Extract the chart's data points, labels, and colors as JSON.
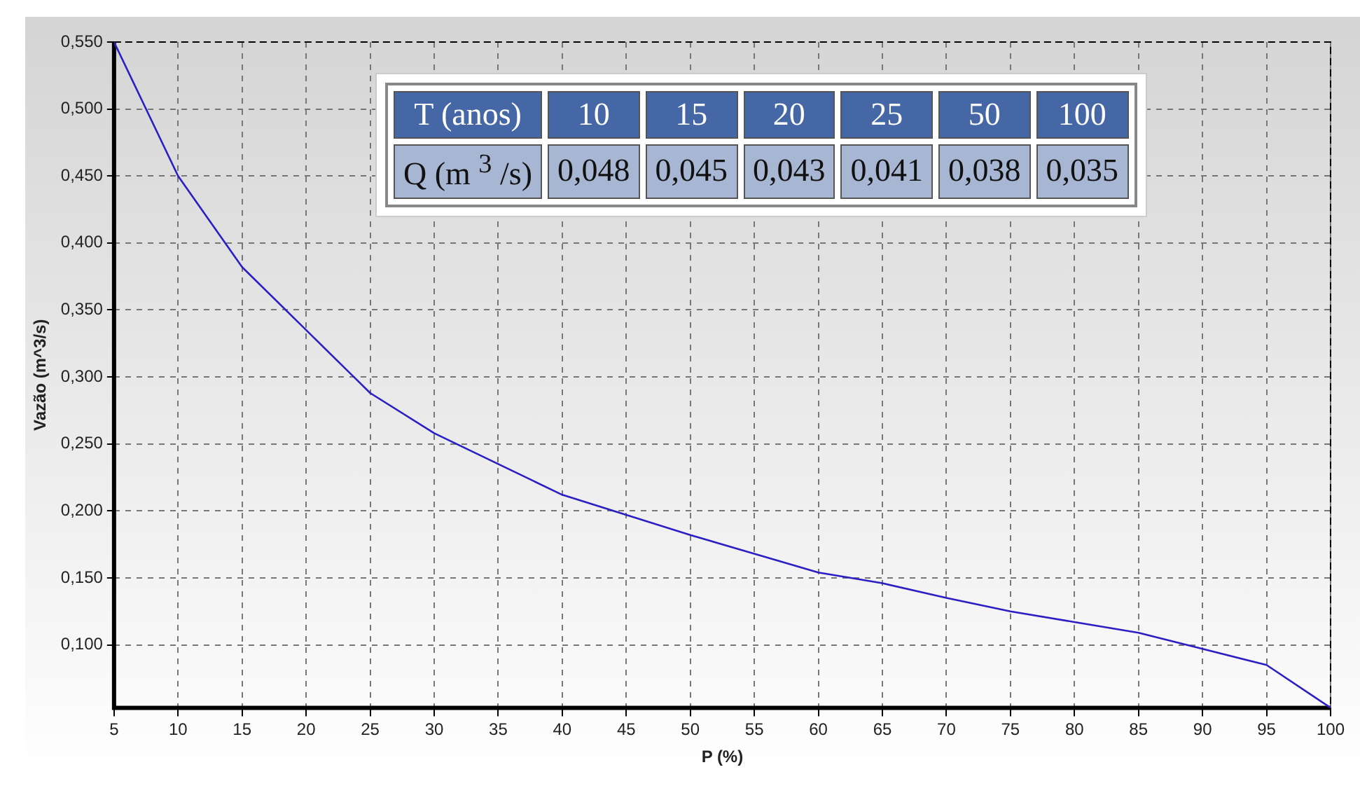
{
  "chart_data": {
    "type": "line",
    "xlabel": "P (%)",
    "ylabel": "Vazão (m^3/s)",
    "x": [
      5,
      10,
      15,
      20,
      25,
      30,
      35,
      40,
      45,
      50,
      55,
      60,
      65,
      70,
      75,
      80,
      85,
      90,
      95,
      100
    ],
    "series": [
      {
        "color": "#2b1fc4",
        "values": [
          0.55,
          0.45,
          0.382,
          0.335,
          0.288,
          0.258,
          0.235,
          0.212,
          0.197,
          0.182,
          0.168,
          0.154,
          0.146,
          0.135,
          0.125,
          0.117,
          0.109,
          0.097,
          0.085,
          0.053
        ]
      }
    ],
    "xlim": [
      5,
      100
    ],
    "xticks": [
      5,
      10,
      15,
      20,
      25,
      30,
      35,
      40,
      45,
      50,
      55,
      60,
      65,
      70,
      75,
      80,
      85,
      90,
      95,
      100
    ],
    "ylim": [
      0.053,
      0.55
    ],
    "yticks": [
      {
        "value": 0.1,
        "label": "0,100"
      },
      {
        "value": 0.15,
        "label": "0,150"
      },
      {
        "value": 0.2,
        "label": "0,200"
      },
      {
        "value": 0.25,
        "label": "0,250"
      },
      {
        "value": 0.3,
        "label": "0,300"
      },
      {
        "value": 0.35,
        "label": "0,350"
      },
      {
        "value": 0.4,
        "label": "0,400"
      },
      {
        "value": 0.45,
        "label": "0,450"
      },
      {
        "value": 0.5,
        "label": "0,500"
      },
      {
        "value": 0.55,
        "label": "0,550"
      }
    ],
    "grid": true,
    "marker": "none",
    "line_style": "solid",
    "legend": false,
    "annotations": [
      "T (anos)",
      "10",
      "15",
      "20",
      "25",
      "50",
      "100",
      "Q (m $^{3}$ /s)",
      "0,048",
      "0,045",
      "0,043",
      "0,041",
      "0,038",
      "0,035"
    ]
  }
}
